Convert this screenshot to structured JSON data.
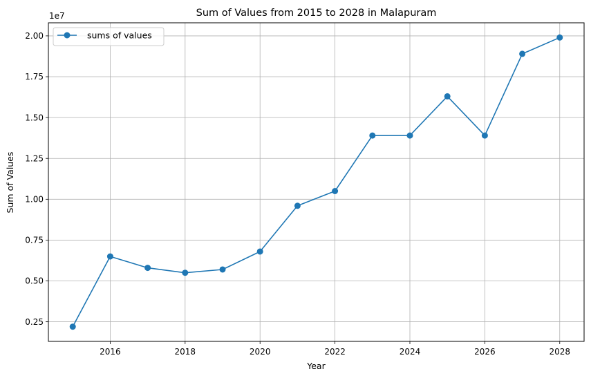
{
  "chart_data": {
    "type": "line",
    "title": "Sum of Values from 2015 to 2028 in Malapuram",
    "xlabel": "Year",
    "ylabel": "Sum of Values",
    "y_offset_label": "1e7",
    "xlim": [
      2014.35,
      2028.65
    ],
    "ylim": [
      1300000,
      20800000
    ],
    "x_ticks": [
      2016,
      2018,
      2020,
      2022,
      2024,
      2026,
      2028
    ],
    "x_tick_labels": [
      "2016",
      "2018",
      "2020",
      "2022",
      "2024",
      "2026",
      "2028"
    ],
    "y_ticks": [
      2500000,
      5000000,
      7500000,
      10000000,
      12500000,
      15000000,
      17500000,
      20000000
    ],
    "y_tick_labels": [
      "0.25",
      "0.50",
      "0.75",
      "1.00",
      "1.25",
      "1.50",
      "1.75",
      "2.00"
    ],
    "grid": true,
    "legend_position": "top-left",
    "series": [
      {
        "name": "sums of values",
        "color": "#1f77b4",
        "marker": "circle",
        "x": [
          2015,
          2016,
          2017,
          2018,
          2019,
          2020,
          2021,
          2022,
          2023,
          2024,
          2025,
          2026,
          2027,
          2028
        ],
        "y": [
          2200000,
          6500000,
          5800000,
          5500000,
          5700000,
          6800000,
          9600000,
          10500000,
          13900000,
          13900000,
          16300000,
          13900000,
          18900000,
          19900000
        ]
      }
    ]
  }
}
